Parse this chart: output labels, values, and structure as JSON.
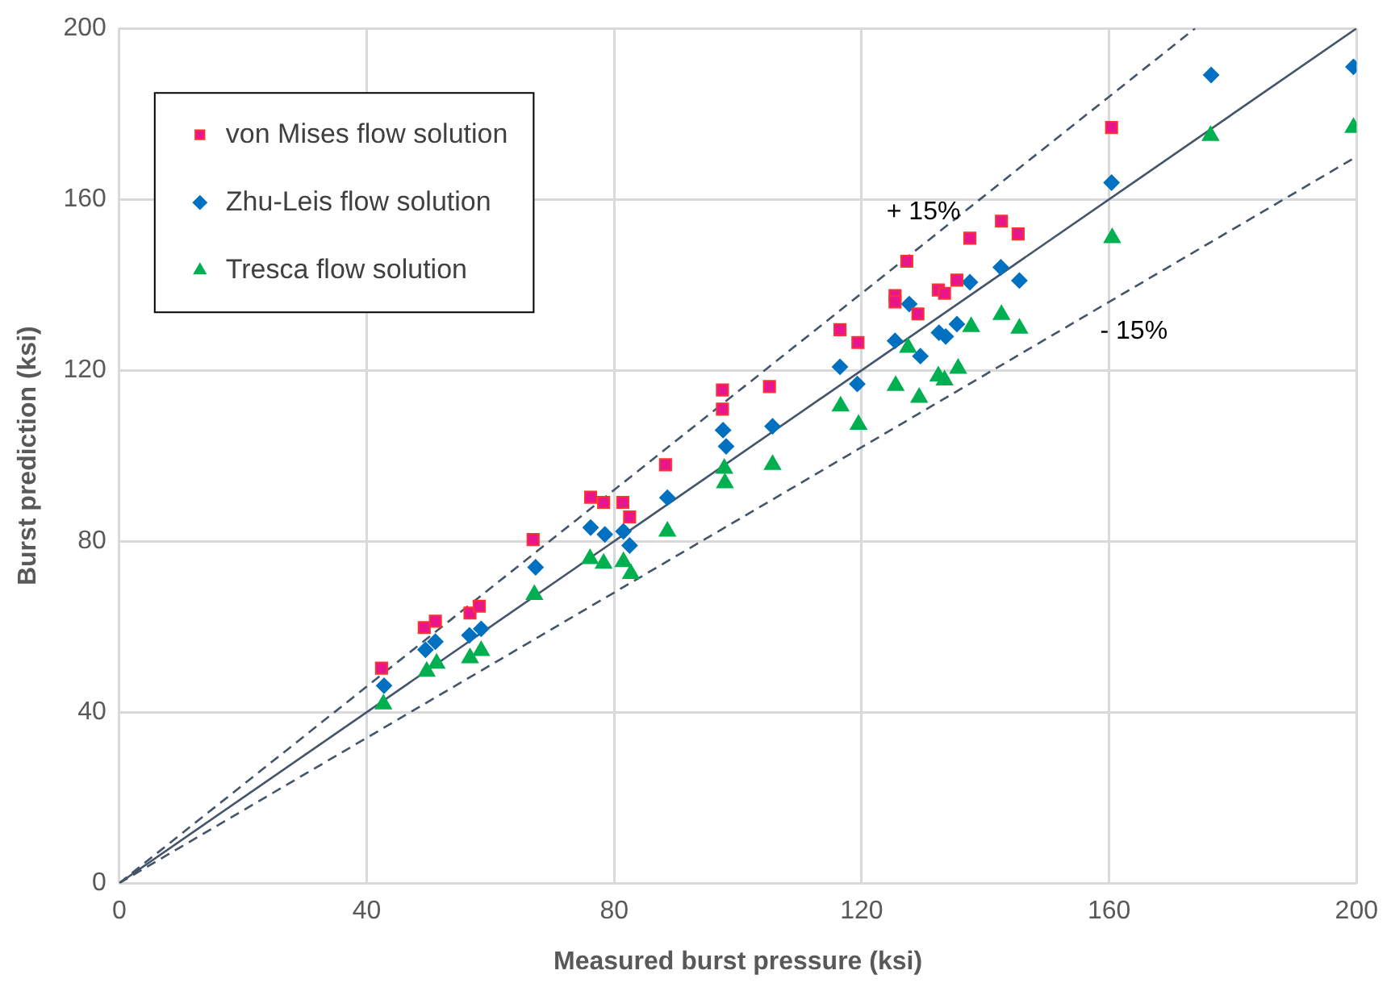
{
  "chart_data": {
    "type": "scatter",
    "xlabel": "Measured burst pressure (ksi)",
    "ylabel": "Burst prediction (ksi)",
    "xlim": [
      0,
      200
    ],
    "ylim": [
      0,
      200
    ],
    "xticks": [
      0,
      40,
      80,
      120,
      160,
      200
    ],
    "yticks": [
      0,
      40,
      80,
      120,
      160,
      200
    ],
    "grid": true,
    "legend": "top left",
    "annotations": [
      "+ 15%",
      "- 15%"
    ],
    "series": [
      {
        "name": "von Mises flow solution",
        "color": "#e8168c",
        "marker": "square",
        "x": [
          42.4,
          49.3,
          51.1,
          56.7,
          58.2,
          66.9,
          76.2,
          78.3,
          81.4,
          82.5,
          88.3,
          97.5,
          97.5,
          105.1,
          116.5,
          119.4,
          125.4,
          125.4,
          127.3,
          129.1,
          132.4,
          133.4,
          135.4,
          137.5,
          142.6,
          145.3,
          160.4
        ],
        "values": [
          50.3,
          59.8,
          61.3,
          63.2,
          64.8,
          80.4,
          90.3,
          89.1,
          89.1,
          85.7,
          97.9,
          115.4,
          110.9,
          116.2,
          129.5,
          126.5,
          137.5,
          136.0,
          145.5,
          133.2,
          138.8,
          138.0,
          141.1,
          150.9,
          154.9,
          151.9,
          176.8
        ]
      },
      {
        "name": "Zhu-Leis flow solution",
        "color": "#0070c0",
        "marker": "diamond",
        "x": [
          42.8,
          49.5,
          51.1,
          56.6,
          58.5,
          67.3,
          76.2,
          78.5,
          81.5,
          82.5,
          88.6,
          97.6,
          98.1,
          105.6,
          116.5,
          119.3,
          125.4,
          127.7,
          129.5,
          132.5,
          133.6,
          135.4,
          137.5,
          142.5,
          145.5,
          160.4,
          176.5,
          199.5
        ],
        "values": [
          46.2,
          54.6,
          56.5,
          58.0,
          59.5,
          73.9,
          83.2,
          81.6,
          82.3,
          79.0,
          90.2,
          106.0,
          102.2,
          106.9,
          120.8,
          116.8,
          126.9,
          135.5,
          123.3,
          128.8,
          127.9,
          130.8,
          140.6,
          144.1,
          141.0,
          163.9,
          189.1,
          191.0
        ]
      },
      {
        "name": "Tresca flow solution",
        "color": "#00b050",
        "marker": "triangle",
        "x": [
          42.7,
          49.7,
          51.3,
          56.7,
          58.5,
          67.1,
          76.1,
          78.3,
          81.5,
          82.7,
          88.6,
          97.8,
          97.9,
          105.6,
          116.6,
          119.5,
          125.5,
          127.5,
          129.3,
          132.4,
          133.4,
          135.6,
          137.7,
          142.6,
          145.5,
          160.5,
          176.4,
          199.5
        ],
        "values": [
          41.9,
          49.5,
          51.4,
          52.7,
          54.4,
          67.5,
          75.9,
          74.8,
          75.2,
          72.4,
          82.3,
          97.0,
          93.6,
          97.9,
          111.6,
          107.3,
          116.4,
          125.3,
          113.6,
          118.6,
          117.7,
          120.4,
          130.2,
          133.0,
          129.8,
          151.0,
          174.9,
          176.8
        ]
      },
      {
        "type": "line",
        "color": "#44546a",
        "marker": "none",
        "line_style": "solid",
        "x": [
          0,
          200
        ],
        "values": [
          0,
          200
        ]
      },
      {
        "type": "line",
        "color": "#44546a",
        "marker": "none",
        "line_style": "dashed",
        "x": [
          0,
          173.9
        ],
        "values": [
          0,
          200
        ]
      },
      {
        "type": "line",
        "color": "#44546a",
        "marker": "none",
        "line_style": "dashed",
        "x": [
          0,
          200
        ],
        "values": [
          0,
          170
        ]
      }
    ]
  }
}
